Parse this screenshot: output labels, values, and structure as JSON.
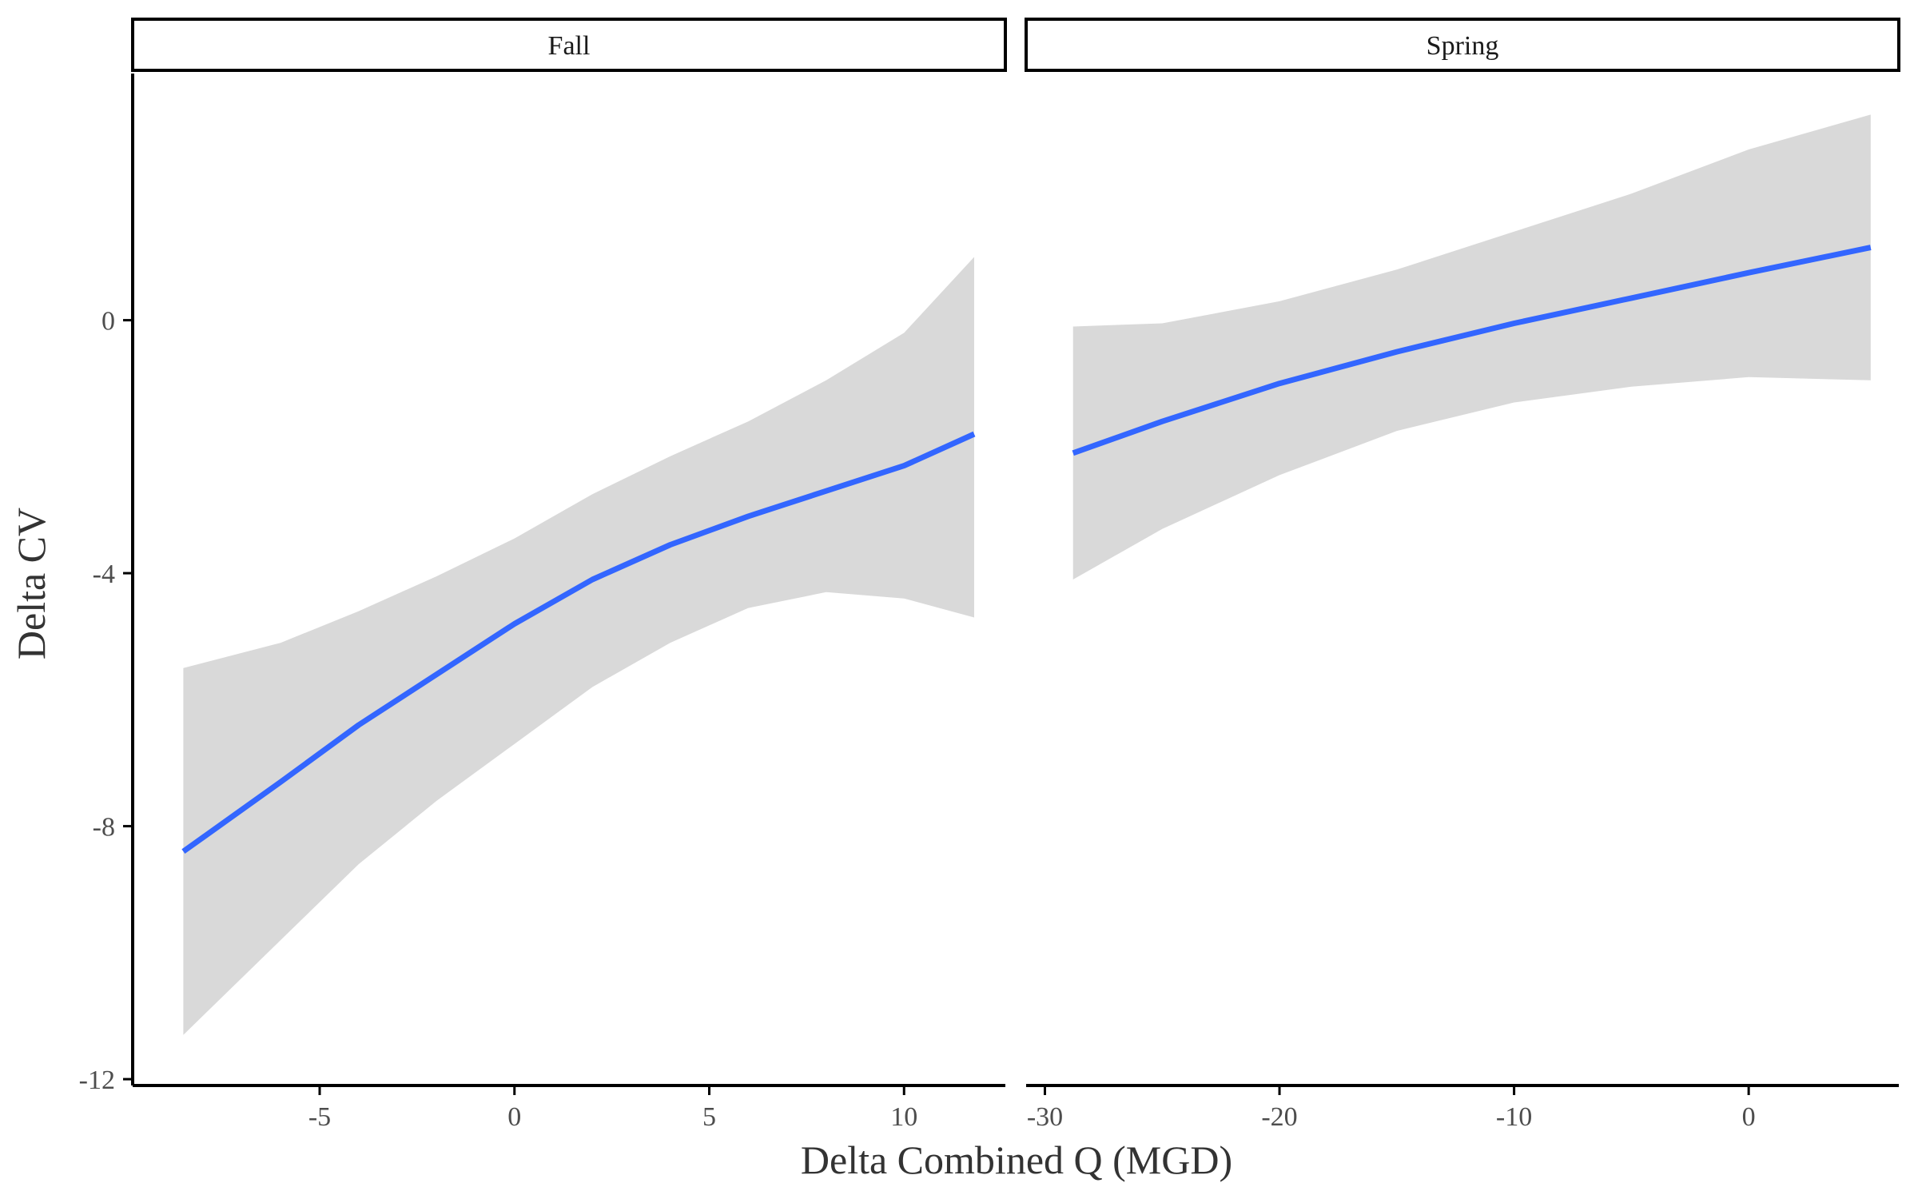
{
  "chart_data": {
    "type": "line",
    "xlabel": "Delta Combined Q (MGD)",
    "ylabel": "Delta CV",
    "ylim": [
      -12.1,
      3.9
    ],
    "yticks": [
      0,
      -4,
      -8,
      -12
    ],
    "colors": {
      "line": "#3366ff",
      "ribbon": "#d9d9d9"
    },
    "facets": [
      {
        "name": "Fall",
        "xlim": [
          -9.8,
          12.6
        ],
        "xticks": [
          -5,
          0,
          5,
          10
        ],
        "x": [
          -8.5,
          -6,
          -4,
          -2,
          0,
          2,
          4,
          6,
          8,
          10,
          11.8
        ],
        "y": [
          -8.4,
          -7.3,
          -6.4,
          -5.6,
          -4.8,
          -4.1,
          -3.55,
          -3.1,
          -2.7,
          -2.3,
          -1.8
        ],
        "lower": [
          -11.3,
          -9.8,
          -8.6,
          -7.6,
          -6.7,
          -5.8,
          -5.1,
          -4.55,
          -4.3,
          -4.4,
          -4.7
        ],
        "upper": [
          -5.5,
          -5.1,
          -4.6,
          -4.05,
          -3.45,
          -2.75,
          -2.15,
          -1.6,
          -0.95,
          -0.2,
          1.0
        ]
      },
      {
        "name": "Spring",
        "xlim": [
          -30.8,
          6.4
        ],
        "xticks": [
          -30,
          -20,
          -10,
          0
        ],
        "x": [
          -28.8,
          -25,
          -20,
          -15,
          -10,
          -5,
          0,
          5.2
        ],
        "y": [
          -2.1,
          -1.6,
          -1.0,
          -0.5,
          -0.05,
          0.35,
          0.75,
          1.15
        ],
        "lower": [
          -4.1,
          -3.3,
          -2.45,
          -1.75,
          -1.3,
          -1.05,
          -0.9,
          -0.95
        ],
        "upper": [
          -0.1,
          -0.05,
          0.3,
          0.8,
          1.4,
          2.0,
          2.7,
          3.25
        ]
      }
    ]
  }
}
